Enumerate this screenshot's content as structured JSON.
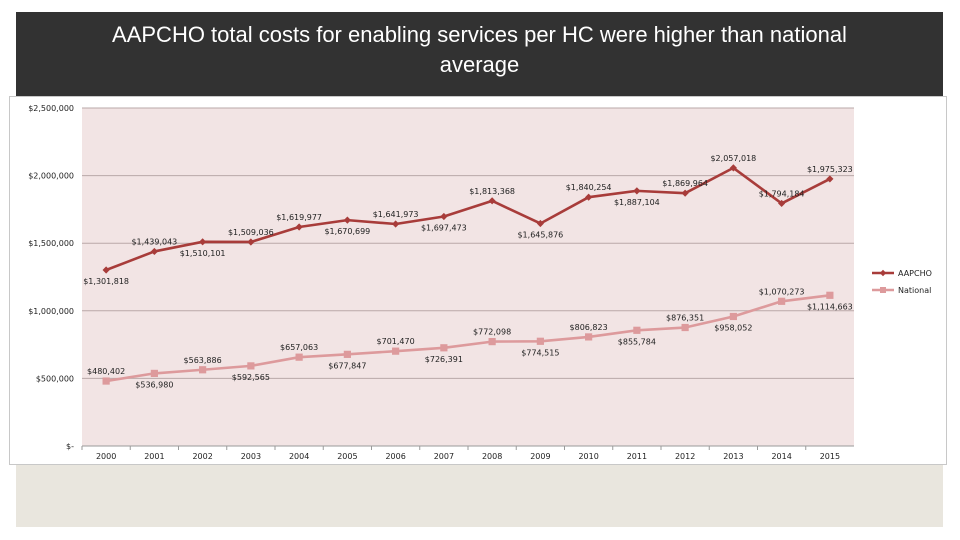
{
  "slide": {
    "title": "AAPCHO total costs for enabling services per HC were higher than national average"
  },
  "colors": {
    "title_bar": "#323232",
    "plot_bg": "#f2e4e4",
    "aapcho": "#a83c3a",
    "national": "#dd9a9c",
    "lower_panel": "#e9e6de"
  },
  "chart_data": {
    "type": "line",
    "title": "",
    "xlabel": "",
    "ylabel": "",
    "categories": [
      "2000",
      "2001",
      "2002",
      "2003",
      "2004",
      "2005",
      "2006",
      "2007",
      "2008",
      "2009",
      "2010",
      "2011",
      "2012",
      "2013",
      "2014",
      "2015"
    ],
    "y_ticks": [
      "$2,500,000",
      "$2,000,000",
      "$1,500,000",
      "$1,000,000",
      "$500,000",
      "$-"
    ],
    "y_tick_values": [
      2500000,
      2000000,
      1500000,
      1000000,
      500000,
      0
    ],
    "ylim": [
      0,
      2500000
    ],
    "grid": "horizontal",
    "legend": "right",
    "series": [
      {
        "name": "AAPCHO",
        "color": "#a83c3a",
        "marker": "diamond",
        "values": [
          1301818,
          1439043,
          1510101,
          1509036,
          1619977,
          1670699,
          1641973,
          1697473,
          1813368,
          1645876,
          1840254,
          1887104,
          1869964,
          2057018,
          1794184,
          1975323
        ],
        "labels": [
          "$1,301,818",
          "$1,439,043",
          "$1,510,101",
          "$1,509,036",
          "$1,619,977",
          "$1,670,699",
          "$1,641,973",
          "$1,697,473",
          "$1,813,368",
          "$1,645,876",
          "$1,840,254",
          "$1,887,104",
          "$1,869,964",
          "$2,057,018",
          "$1,794,184",
          "$1,975,323"
        ],
        "label_pos": [
          "below",
          "above",
          "below",
          "above",
          "above",
          "below",
          "above",
          "below",
          "above",
          "below",
          "above",
          "below",
          "above",
          "above",
          "above",
          "above"
        ]
      },
      {
        "name": "National",
        "color": "#dd9a9c",
        "marker": "square",
        "values": [
          480402,
          536980,
          563886,
          592565,
          657063,
          677847,
          701470,
          726391,
          772098,
          774515,
          806823,
          855784,
          876351,
          958052,
          1070273,
          1114663
        ],
        "labels": [
          "$480,402",
          "$536,980",
          "$563,886",
          "$592,565",
          "$657,063",
          "$677,847",
          "$701,470",
          "$726,391",
          "$772,098",
          "$774,515",
          "$806,823",
          "$855,784",
          "$876,351",
          "$958,052",
          "$1,070,273",
          "$1,114,663"
        ],
        "label_pos": [
          "above",
          "below",
          "above",
          "below",
          "above",
          "below",
          "above",
          "below",
          "above",
          "below",
          "above",
          "below",
          "above",
          "below",
          "above",
          "below"
        ]
      }
    ]
  }
}
